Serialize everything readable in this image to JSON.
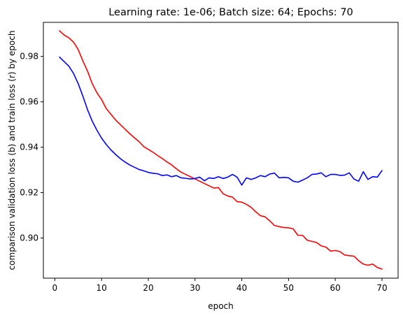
{
  "chart_data": {
    "type": "line",
    "title": "Learning rate: 1e-06; Batch size: 64; Epochs: 70",
    "xlabel": "epoch",
    "ylabel": "comparison validation loss (b) and train loss (r) by epoch",
    "xlim": [
      -2.45,
      73.45
    ],
    "ylim": [
      0.8823,
      0.995
    ],
    "xticks": [
      0,
      10,
      20,
      30,
      40,
      50,
      60,
      70
    ],
    "yticks": [
      0.9,
      0.92,
      0.94,
      0.96,
      0.98
    ],
    "ytick_labels": [
      "0.90",
      "0.92",
      "0.94",
      "0.96",
      "0.98"
    ],
    "grid": false,
    "x": [
      1,
      2,
      3,
      4,
      5,
      6,
      7,
      8,
      9,
      10,
      11,
      12,
      13,
      14,
      15,
      16,
      17,
      18,
      19,
      20,
      21,
      22,
      23,
      24,
      25,
      26,
      27,
      28,
      29,
      30,
      31,
      32,
      33,
      34,
      35,
      36,
      37,
      38,
      39,
      40,
      41,
      42,
      43,
      44,
      45,
      46,
      47,
      48,
      49,
      50,
      51,
      52,
      53,
      54,
      55,
      56,
      57,
      58,
      59,
      60,
      61,
      62,
      63,
      64,
      65,
      66,
      67,
      68,
      69,
      70
    ],
    "series": [
      {
        "name": "train loss (r)",
        "color": "#ff0000",
        "values": [
          0.9913,
          0.9894,
          0.9882,
          0.9863,
          0.983,
          0.978,
          0.9735,
          0.968,
          0.964,
          0.961,
          0.957,
          0.9545,
          0.952,
          0.95,
          0.948,
          0.946,
          0.9442,
          0.9425,
          0.9403,
          0.939,
          0.9378,
          0.9363,
          0.935,
          0.9335,
          0.9322,
          0.9305,
          0.929,
          0.928,
          0.927,
          0.926,
          0.925,
          0.924,
          0.923,
          0.922,
          0.9222,
          0.9195,
          0.9185,
          0.918,
          0.916,
          0.9158,
          0.9148,
          0.9135,
          0.9115,
          0.9098,
          0.9093,
          0.9075,
          0.9055,
          0.905,
          0.9046,
          0.9045,
          0.904,
          0.9012,
          0.9012,
          0.899,
          0.8985,
          0.898,
          0.8965,
          0.896,
          0.8942,
          0.8945,
          0.894,
          0.8925,
          0.8922,
          0.892,
          0.89,
          0.8885,
          0.888,
          0.8885,
          0.887,
          0.8863
        ]
      },
      {
        "name": "validation loss (b)",
        "color": "#0000ff",
        "values": [
          0.9797,
          0.9777,
          0.9757,
          0.9725,
          0.968,
          0.9625,
          0.9565,
          0.9515,
          0.9475,
          0.944,
          0.9412,
          0.9388,
          0.9368,
          0.935,
          0.9335,
          0.9322,
          0.9312,
          0.9302,
          0.9296,
          0.9289,
          0.9285,
          0.9283,
          0.9275,
          0.9278,
          0.927,
          0.9275,
          0.9265,
          0.9263,
          0.926,
          0.9262,
          0.9268,
          0.9252,
          0.9265,
          0.9262,
          0.927,
          0.9262,
          0.9268,
          0.928,
          0.9268,
          0.9233,
          0.9265,
          0.9258,
          0.9265,
          0.9275,
          0.927,
          0.9282,
          0.9286,
          0.9265,
          0.9267,
          0.9265,
          0.925,
          0.9246,
          0.9255,
          0.9265,
          0.928,
          0.9282,
          0.9287,
          0.927,
          0.928,
          0.928,
          0.9276,
          0.9277,
          0.9287,
          0.926,
          0.925,
          0.9292,
          0.9258,
          0.927,
          0.9268,
          0.9297
        ]
      }
    ]
  }
}
